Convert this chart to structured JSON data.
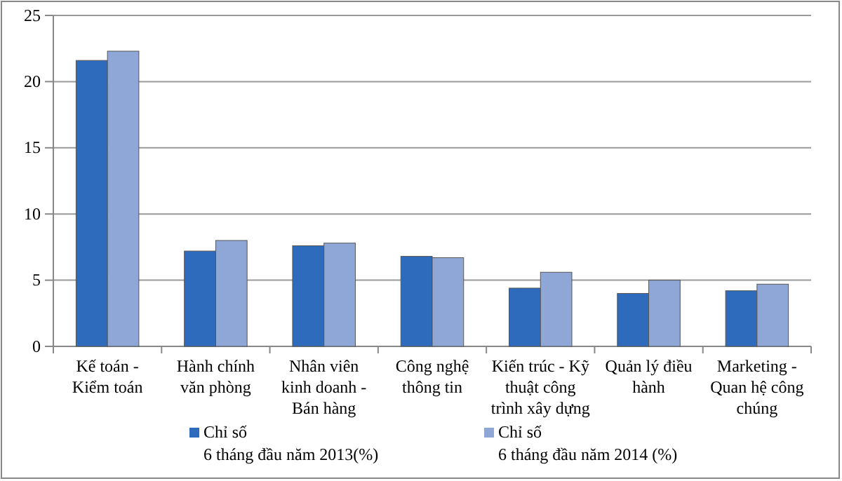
{
  "chart_data": {
    "type": "bar",
    "categories": [
      "Kế toán - Kiểm toán",
      "Hành chính văn phòng",
      "Nhân viên kinh doanh - Bán hàng",
      "Công nghệ thông tin",
      "Kiến trúc - Kỹ thuật công trình xây dựng",
      "Quản lý điều hành",
      "Marketing - Quan hệ công chúng"
    ],
    "series": [
      {
        "name": "Chỉ số\n6 tháng đầu năm 2013(%)",
        "color": "#2e6bbd",
        "values": [
          21.6,
          7.2,
          7.6,
          6.8,
          4.4,
          4.0,
          4.2
        ]
      },
      {
        "name": "Chỉ số\n6 tháng đầu năm 2014 (%)",
        "color": "#8ea7d6",
        "values": [
          22.3,
          8.0,
          7.8,
          6.7,
          5.6,
          5.0,
          4.7
        ]
      }
    ],
    "ylim": [
      0,
      25
    ],
    "yticks": [
      0,
      5,
      10,
      15,
      20,
      25
    ],
    "grid": "y",
    "legend": "bottom"
  }
}
